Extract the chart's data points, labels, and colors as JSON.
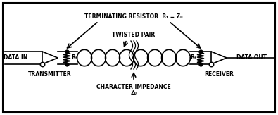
{
  "bg_color": "#ffffff",
  "line_color": "#000000",
  "labels": {
    "data_in": "DATA IN",
    "data_out": "DATA OUT",
    "transmitter": "TRANSMITTER",
    "receiver": "RECEIVER",
    "twisted_pair": "TWISTED PAIR",
    "terminating_resistor": "TERMINATING RESISTOR",
    "rt_eq_z0": "Rₜ = Z₀",
    "character_impedance": "CHARACTER IMPEDANCE",
    "z0": "Z₀",
    "rt": "Rₜ"
  },
  "lw": 1.2,
  "fig_w": 3.95,
  "fig_h": 1.63,
  "dpi": 100,
  "xlim": [
    0,
    395
  ],
  "ylim": [
    0,
    163
  ],
  "border": [
    4,
    4,
    387,
    155
  ],
  "font_size": 5.5,
  "font_size_sm": 5.0
}
